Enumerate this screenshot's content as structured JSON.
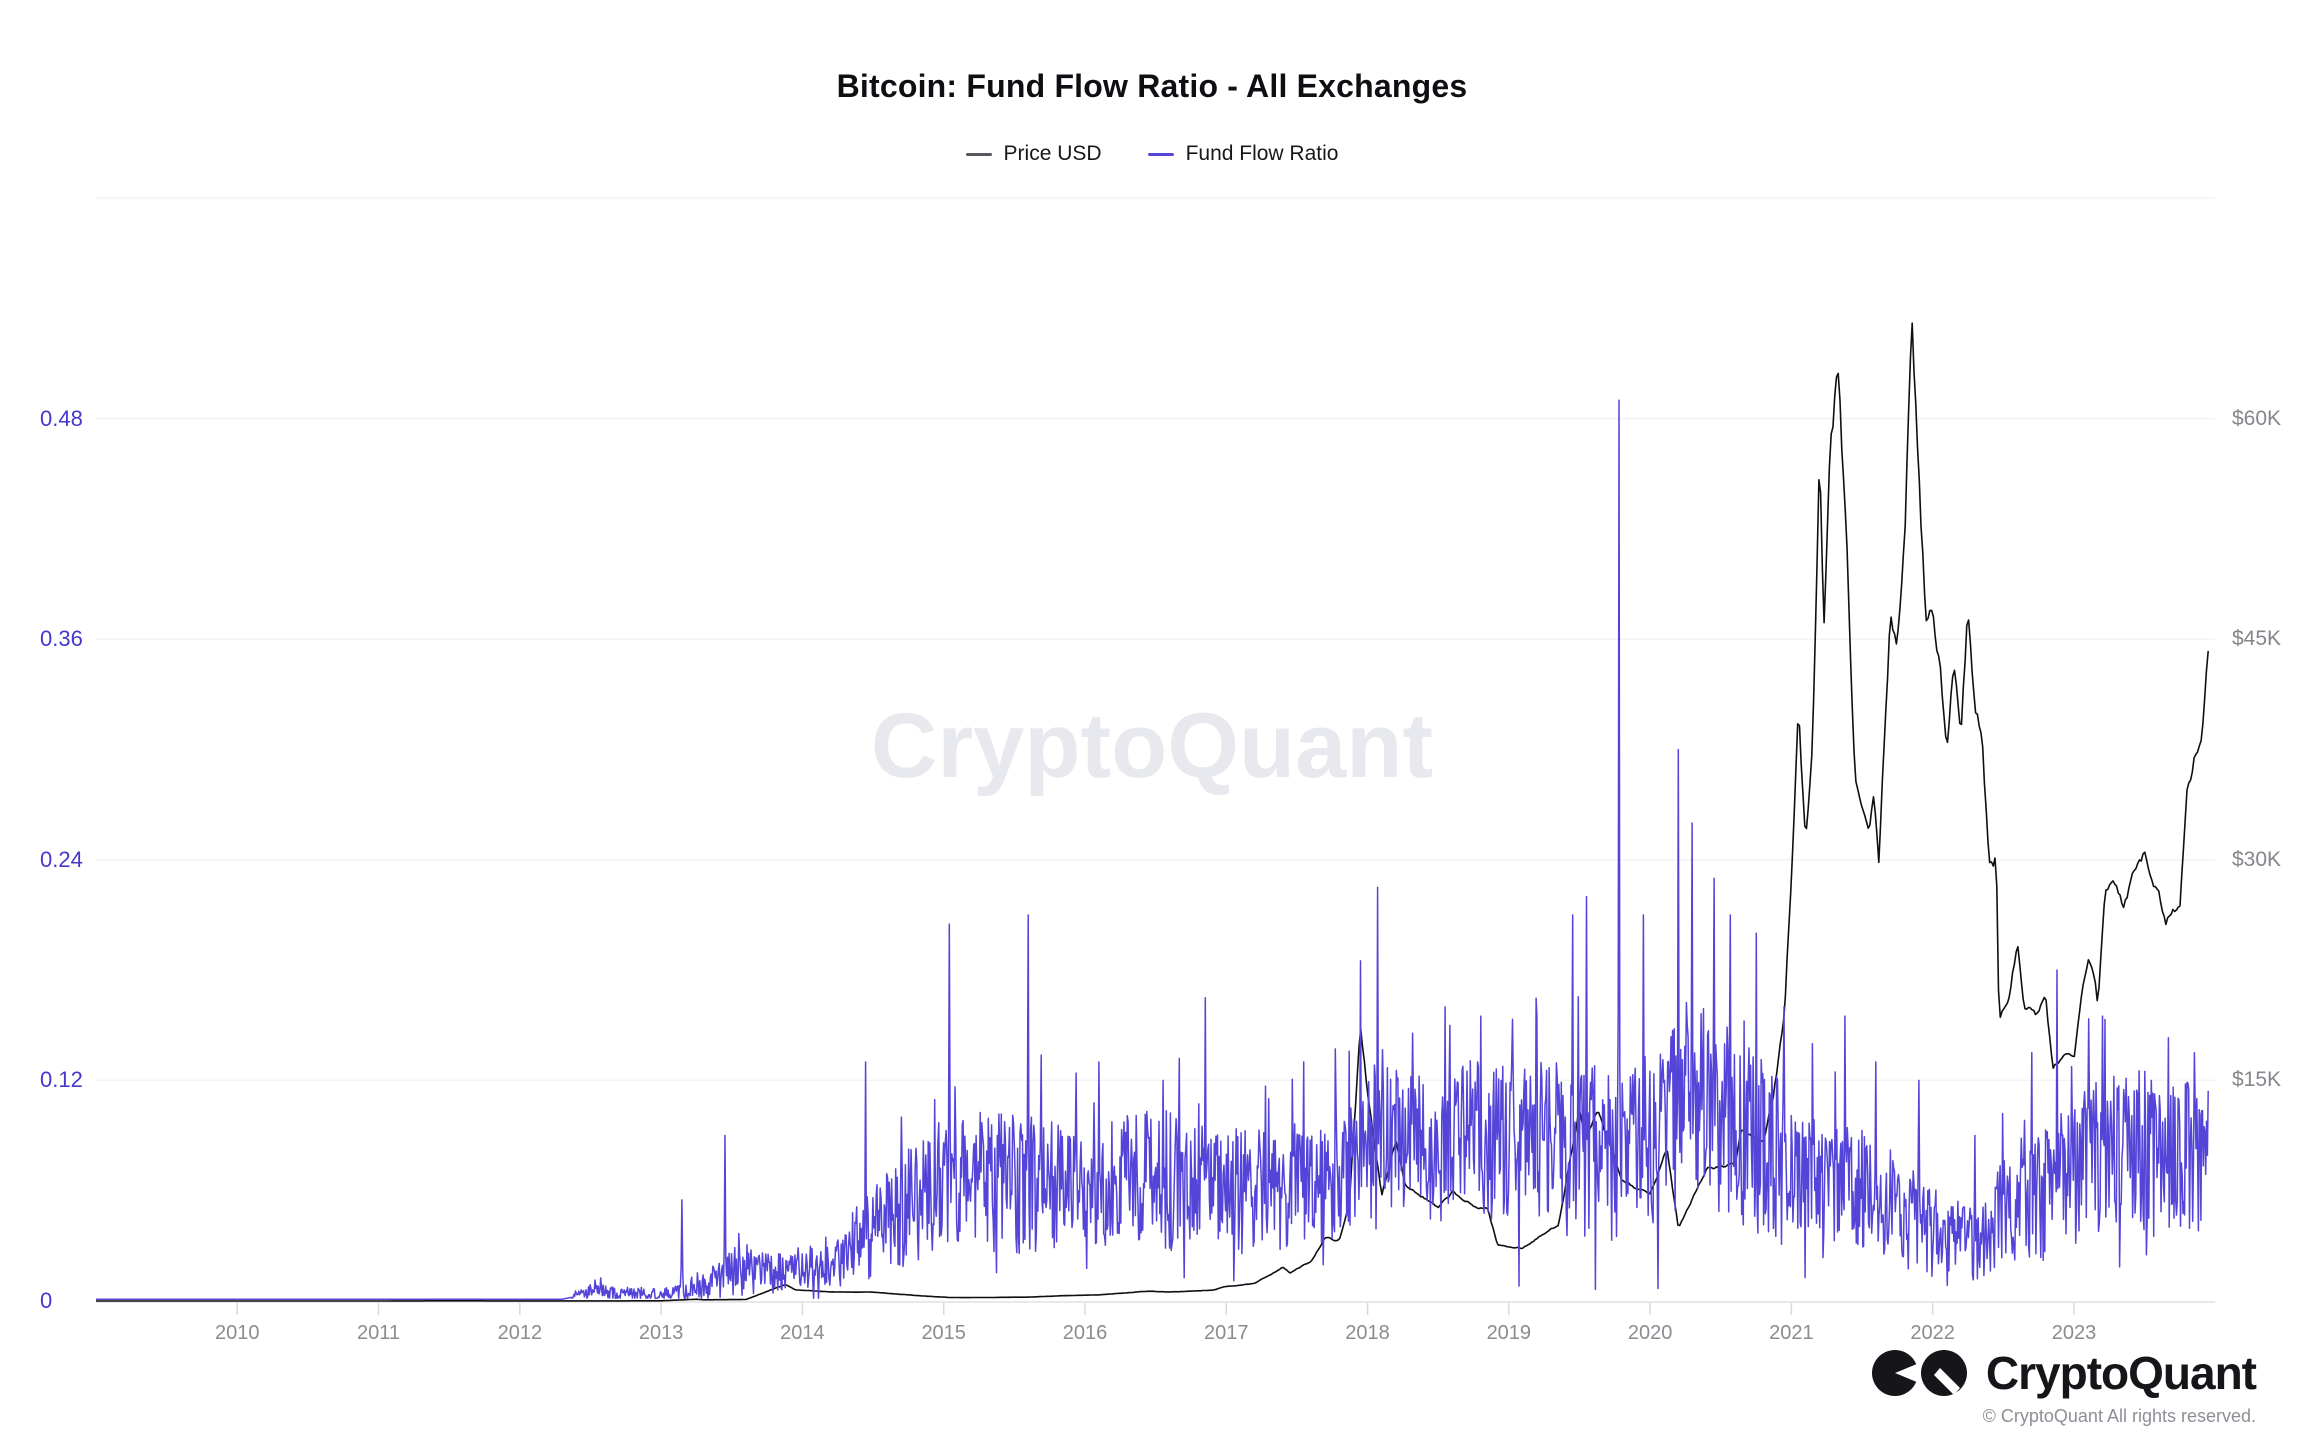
{
  "header": {
    "title": "Bitcoin: Fund Flow Ratio - All Exchanges"
  },
  "legend": [
    {
      "label": "Price USD",
      "color": "#55585e"
    },
    {
      "label": "Fund Flow Ratio",
      "color": "#5546d9"
    }
  ],
  "watermark": "CryptoQuant",
  "footer": {
    "brand": "CryptoQuant",
    "copyright": "© CryptoQuant All rights reserved."
  },
  "chart_data": {
    "type": "line",
    "title": "Bitcoin: Fund Flow Ratio - All Exchanges",
    "legend_position": "top-center",
    "grid": {
      "horizontal": true,
      "vertical": false,
      "color": "#f3f3f6",
      "axis_line_color": "#e8e8ec",
      "tick_color": "#d9d9de"
    },
    "x_axis": {
      "range": [
        2009.0,
        2023.97
      ],
      "tick_years": [
        2010,
        2011,
        2012,
        2013,
        2014,
        2015,
        2016,
        2017,
        2018,
        2019,
        2020,
        2021,
        2022,
        2023
      ]
    },
    "left_axis": {
      "name": "Fund Flow Ratio",
      "color": "#4538cb",
      "range": [
        0,
        0.6
      ],
      "ticks": [
        0,
        0.12,
        0.24,
        0.36,
        0.48
      ],
      "labels": [
        "0",
        "0.12",
        "0.24",
        "0.36",
        "0.48"
      ]
    },
    "right_axis": {
      "name": "Price USD",
      "color": "#84868c",
      "range": [
        0,
        75000
      ],
      "ticks": [
        15000,
        30000,
        45000,
        60000
      ],
      "labels": [
        "$15K",
        "$30K",
        "$45K",
        "$60K"
      ]
    },
    "series": {
      "price_usd": {
        "name": "Price USD",
        "color": "#0f0f12",
        "width": 1.6,
        "anchors_t": [
          2009.0,
          2010.0,
          2011.0,
          2011.5,
          2012.0,
          2012.5,
          2013.0,
          2013.25,
          2013.3,
          2013.6,
          2013.88,
          2013.95,
          2014.2,
          2014.5,
          2014.8,
          2015.05,
          2015.3,
          2015.6,
          2015.85,
          2016.1,
          2016.45,
          2016.6,
          2016.9,
          2017.0,
          2017.2,
          2017.4,
          2017.45,
          2017.6,
          2017.7,
          2017.8,
          2017.87,
          2017.95,
          2018.0,
          2018.1,
          2018.2,
          2018.27,
          2018.5,
          2018.6,
          2018.75,
          2018.85,
          2018.92,
          2019.0,
          2019.1,
          2019.35,
          2019.5,
          2019.55,
          2019.63,
          2019.8,
          2020.0,
          2020.12,
          2020.2,
          2020.4,
          2020.6,
          2020.65,
          2020.8,
          2020.87,
          2020.95,
          2021.0,
          2021.05,
          2021.1,
          2021.15,
          2021.2,
          2021.23,
          2021.28,
          2021.33,
          2021.4,
          2021.45,
          2021.55,
          2021.58,
          2021.62,
          2021.7,
          2021.75,
          2021.8,
          2021.85,
          2021.9,
          2021.95,
          2022.0,
          2022.05,
          2022.1,
          2022.15,
          2022.2,
          2022.25,
          2022.3,
          2022.35,
          2022.4,
          2022.45,
          2022.47,
          2022.55,
          2022.6,
          2022.65,
          2022.75,
          2022.8,
          2022.85,
          2022.92,
          2023.0,
          2023.05,
          2023.1,
          2023.15,
          2023.17,
          2023.22,
          2023.3,
          2023.35,
          2023.45,
          2023.5,
          2023.55,
          2023.65,
          2023.7,
          2023.75,
          2023.8,
          2023.85,
          2023.9,
          2023.95
        ],
        "anchors_v": [
          0,
          0.1,
          1,
          15,
          5,
          7,
          13,
          120,
          80,
          100,
          1130,
          750,
          620,
          600,
          380,
          230,
          240,
          260,
          360,
          420,
          670,
          610,
          730,
          990,
          1180,
          2300,
          1900,
          2700,
          4300,
          4100,
          6500,
          19000,
          14000,
          7200,
          11000,
          7900,
          6300,
          7400,
          6400,
          6300,
          3800,
          3700,
          3600,
          5200,
          13000,
          11000,
          12900,
          8200,
          7200,
          10300,
          5000,
          9000,
          9200,
          11800,
          10700,
          13800,
          19400,
          29000,
          40500,
          31000,
          38000,
          57500,
          45000,
          58800,
          63500,
          49000,
          35500,
          31500,
          34500,
          29800,
          47000,
          44500,
          51000,
          67500,
          57000,
          46500,
          47500,
          43500,
          36800,
          44000,
          39000,
          47200,
          40000,
          38500,
          29500,
          30000,
          19000,
          21000,
          24300,
          19800,
          19500,
          20500,
          15700,
          16800,
          16600,
          21000,
          23500,
          22000,
          20200,
          28300,
          28000,
          26800,
          30200,
          30500,
          29200,
          26000,
          26500,
          27000,
          34500,
          37000,
          37800,
          44200
        ],
        "noise": {
          "seed": 7,
          "samples": 1200,
          "rel_amp": 0.03
        }
      },
      "fund_flow_ratio": {
        "name": "Fund Flow Ratio",
        "color": "#5444d8",
        "width": 1.5,
        "envelope_t": [
          2009.0,
          2012.3,
          2012.5,
          2013.0,
          2013.35,
          2013.5,
          2013.8,
          2014.0,
          2014.3,
          2014.55,
          2014.8,
          2015.0,
          2015.3,
          2015.6,
          2016.0,
          2016.5,
          2017.0,
          2017.5,
          2017.9,
          2018.1,
          2018.4,
          2018.7,
          2019.0,
          2019.3,
          2019.6,
          2019.9,
          2020.1,
          2020.25,
          2020.45,
          2020.7,
          2020.9,
          2021.1,
          2021.4,
          2021.7,
          2021.95,
          2022.1,
          2022.35,
          2022.5,
          2022.75,
          2023.0,
          2023.3,
          2023.6,
          2023.95
        ],
        "envelope_base": [
          0.001,
          0.001,
          0.004,
          0.003,
          0.008,
          0.015,
          0.012,
          0.015,
          0.02,
          0.035,
          0.05,
          0.055,
          0.06,
          0.055,
          0.055,
          0.06,
          0.055,
          0.055,
          0.065,
          0.085,
          0.075,
          0.08,
          0.075,
          0.08,
          0.07,
          0.075,
          0.08,
          0.1,
          0.095,
          0.08,
          0.07,
          0.06,
          0.055,
          0.05,
          0.035,
          0.03,
          0.028,
          0.045,
          0.05,
          0.065,
          0.075,
          0.07,
          0.075
        ],
        "envelope_amp": [
          0.0,
          0.001,
          0.004,
          0.003,
          0.008,
          0.012,
          0.01,
          0.012,
          0.015,
          0.025,
          0.03,
          0.035,
          0.035,
          0.035,
          0.03,
          0.035,
          0.03,
          0.03,
          0.035,
          0.04,
          0.035,
          0.04,
          0.04,
          0.04,
          0.045,
          0.04,
          0.045,
          0.05,
          0.05,
          0.045,
          0.04,
          0.035,
          0.035,
          0.03,
          0.025,
          0.02,
          0.018,
          0.025,
          0.03,
          0.035,
          0.04,
          0.035,
          0.04
        ],
        "spikes_t": [
          2013.15,
          2013.45,
          2014.45,
          2014.7,
          2015.04,
          2015.6,
          2016.1,
          2016.55,
          2016.85,
          2017.3,
          2017.55,
          2017.95,
          2018.07,
          2018.55,
          2018.8,
          2019.2,
          2019.45,
          2019.55,
          2019.78,
          2019.95,
          2020.2,
          2020.3,
          2020.45,
          2020.57,
          2020.75,
          2020.95,
          2021.15,
          2021.38,
          2021.6,
          2021.9,
          2022.3,
          2022.7,
          2022.88,
          2023.2,
          2023.55,
          2023.85
        ],
        "spikes_v": [
          0.055,
          0.09,
          0.13,
          0.1,
          0.205,
          0.21,
          0.13,
          0.12,
          0.165,
          0.11,
          0.13,
          0.185,
          0.225,
          0.16,
          0.155,
          0.155,
          0.21,
          0.22,
          0.49,
          0.21,
          0.3,
          0.26,
          0.23,
          0.21,
          0.2,
          0.16,
          0.14,
          0.155,
          0.13,
          0.12,
          0.09,
          0.135,
          0.18,
          0.155,
          0.12,
          0.135
        ],
        "noise": {
          "seed": 1337,
          "samples": 2600,
          "spike_prob": 0.045
        }
      }
    }
  }
}
